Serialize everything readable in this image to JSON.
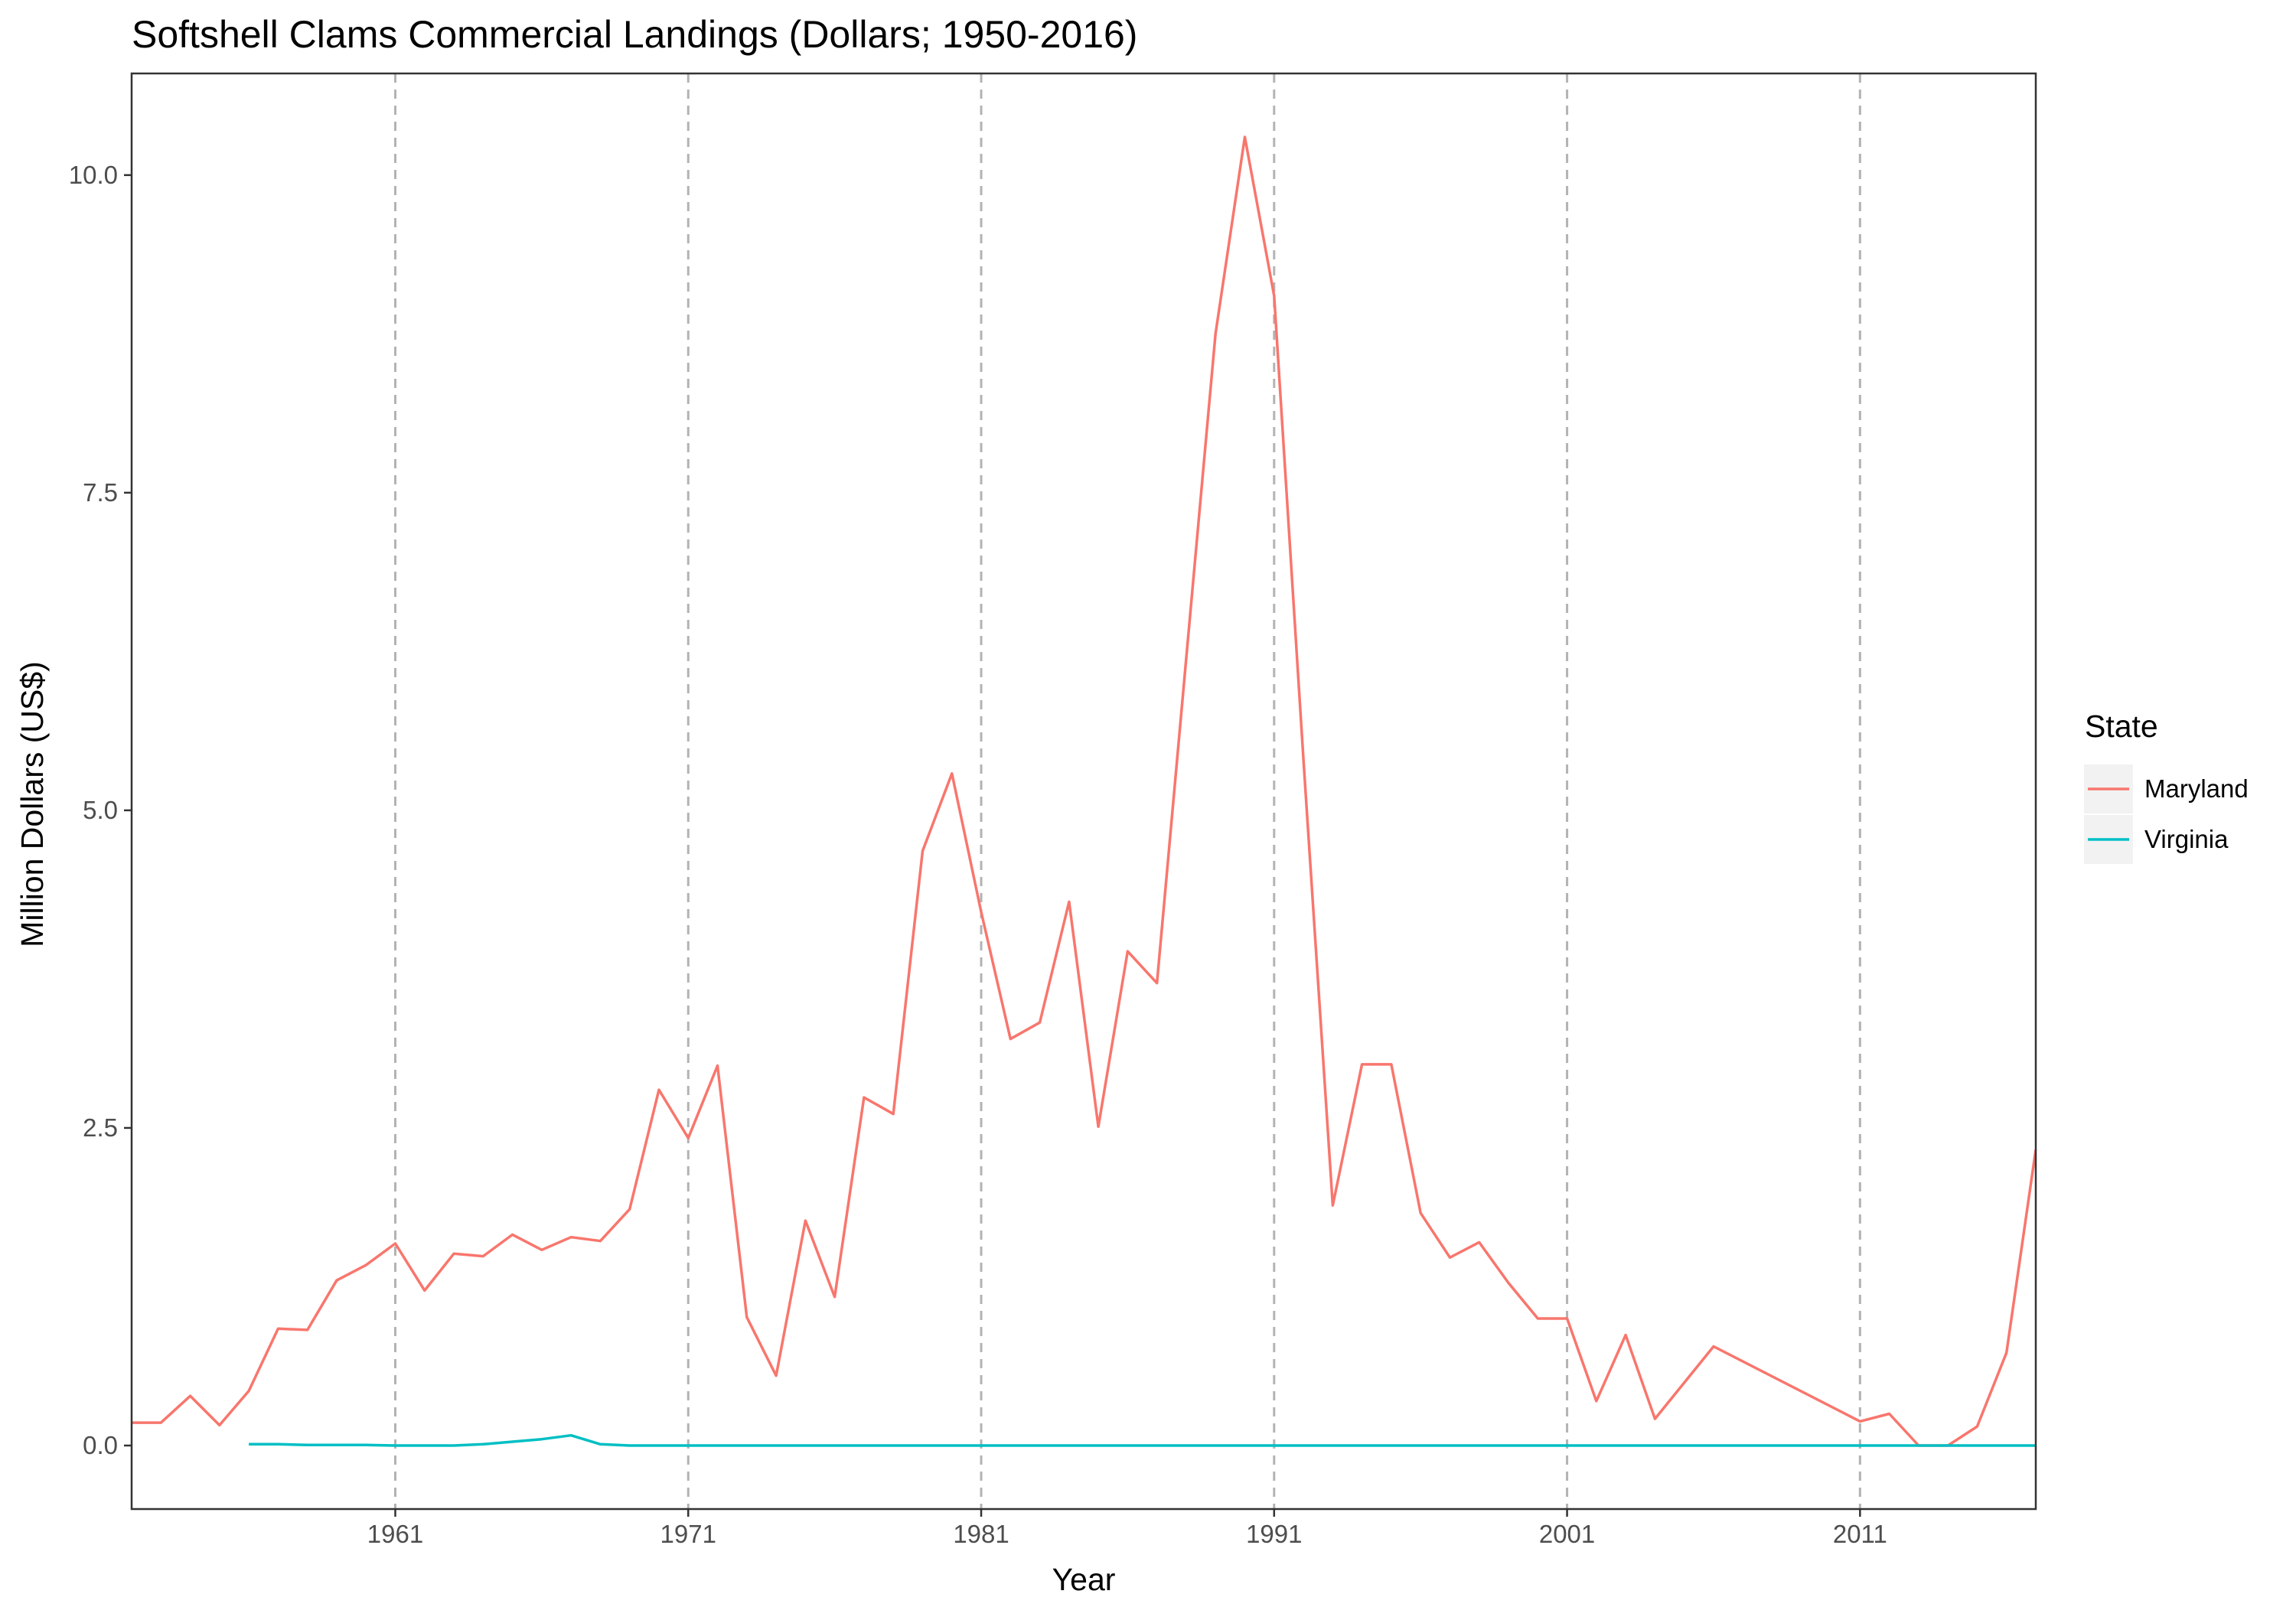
{
  "chart_data": {
    "type": "line",
    "title": "Softshell Clams Commercial Landings (Dollars; 1950-2016)",
    "xlabel": "Year",
    "ylabel": "Million Dollars (US$)",
    "xlim": [
      1952,
      2017
    ],
    "ylim": [
      -0.5,
      10.8
    ],
    "x_ticks": [
      1961,
      1971,
      1981,
      1991,
      2001,
      2011
    ],
    "x_tick_labels": [
      "1961",
      "1971",
      "1981",
      "1991",
      "2001",
      "2011"
    ],
    "y_ticks": [
      0,
      2.5,
      5,
      7.5,
      10
    ],
    "y_tick_labels": [
      "0.0",
      "2.5",
      "5.0",
      "7.5",
      "10.0"
    ],
    "vertical_reference_lines": [
      1961,
      1971,
      1981,
      1991,
      2001,
      2011
    ],
    "grid": false,
    "legend": {
      "title": "State",
      "placement": "right"
    },
    "series": [
      {
        "name": "Maryland",
        "color": "#F8766D",
        "points": [
          [
            1952,
            0.18
          ],
          [
            1953,
            0.18
          ],
          [
            1954,
            0.39
          ],
          [
            1955,
            0.16
          ],
          [
            1956,
            0.43
          ],
          [
            1957,
            0.92
          ],
          [
            1958,
            0.91
          ],
          [
            1959,
            1.3
          ],
          [
            1960,
            1.42
          ],
          [
            1961,
            1.59
          ],
          [
            1962,
            1.22
          ],
          [
            1963,
            1.51
          ],
          [
            1964,
            1.49
          ],
          [
            1965,
            1.66
          ],
          [
            1966,
            1.54
          ],
          [
            1967,
            1.64
          ],
          [
            1968,
            1.61
          ],
          [
            1969,
            1.86
          ],
          [
            1970,
            2.8
          ],
          [
            1971,
            2.42
          ],
          [
            1972,
            2.99
          ],
          [
            1973,
            1.01
          ],
          [
            1974,
            0.55
          ],
          [
            1975,
            1.77
          ],
          [
            1976,
            1.17
          ],
          [
            1977,
            2.74
          ],
          [
            1978,
            2.61
          ],
          [
            1979,
            4.68
          ],
          [
            1980,
            5.29
          ],
          [
            1981,
            4.2
          ],
          [
            1982,
            3.2
          ],
          [
            1983,
            3.33
          ],
          [
            1984,
            4.28
          ],
          [
            1985,
            2.51
          ],
          [
            1986,
            3.89
          ],
          [
            1987,
            3.64
          ],
          [
            1988,
            6.2
          ],
          [
            1989,
            8.75
          ],
          [
            1990,
            10.3
          ],
          [
            1991,
            9.05
          ],
          [
            1992,
            5.4
          ],
          [
            1993,
            1.89
          ],
          [
            1994,
            3.0
          ],
          [
            1995,
            3.0
          ],
          [
            1996,
            1.83
          ],
          [
            1997,
            1.48
          ],
          [
            1998,
            1.6
          ],
          [
            1999,
            1.28
          ],
          [
            2000,
            1.0
          ],
          [
            2001,
            1.0
          ],
          [
            2002,
            0.35
          ],
          [
            2003,
            0.87
          ],
          [
            2004,
            0.21
          ],
          [
            2006,
            0.78
          ],
          [
            2011,
            0.19
          ],
          [
            2012,
            0.25
          ],
          [
            2013,
            0.0
          ],
          [
            2014,
            0.0
          ],
          [
            2015,
            0.15
          ],
          [
            2016,
            0.73
          ],
          [
            2017,
            2.33
          ]
        ]
      },
      {
        "name": "Virginia",
        "color": "#00BFC4",
        "points": [
          [
            1956,
            0.01
          ],
          [
            1957,
            0.01
          ],
          [
            1958,
            0.005
          ],
          [
            1959,
            0.005
          ],
          [
            1960,
            0.005
          ],
          [
            1961,
            0.0
          ],
          [
            1962,
            0.0
          ],
          [
            1963,
            0.0
          ],
          [
            1964,
            0.01
          ],
          [
            1965,
            0.03
          ],
          [
            1966,
            0.05
          ],
          [
            1967,
            0.08
          ],
          [
            1968,
            0.01
          ],
          [
            1969,
            0.0
          ],
          [
            1970,
            0.0
          ],
          [
            1980,
            0.0
          ],
          [
            1990,
            0.0
          ],
          [
            2000,
            0.0
          ],
          [
            2010,
            0.0
          ],
          [
            2017,
            0.0
          ]
        ]
      }
    ]
  }
}
